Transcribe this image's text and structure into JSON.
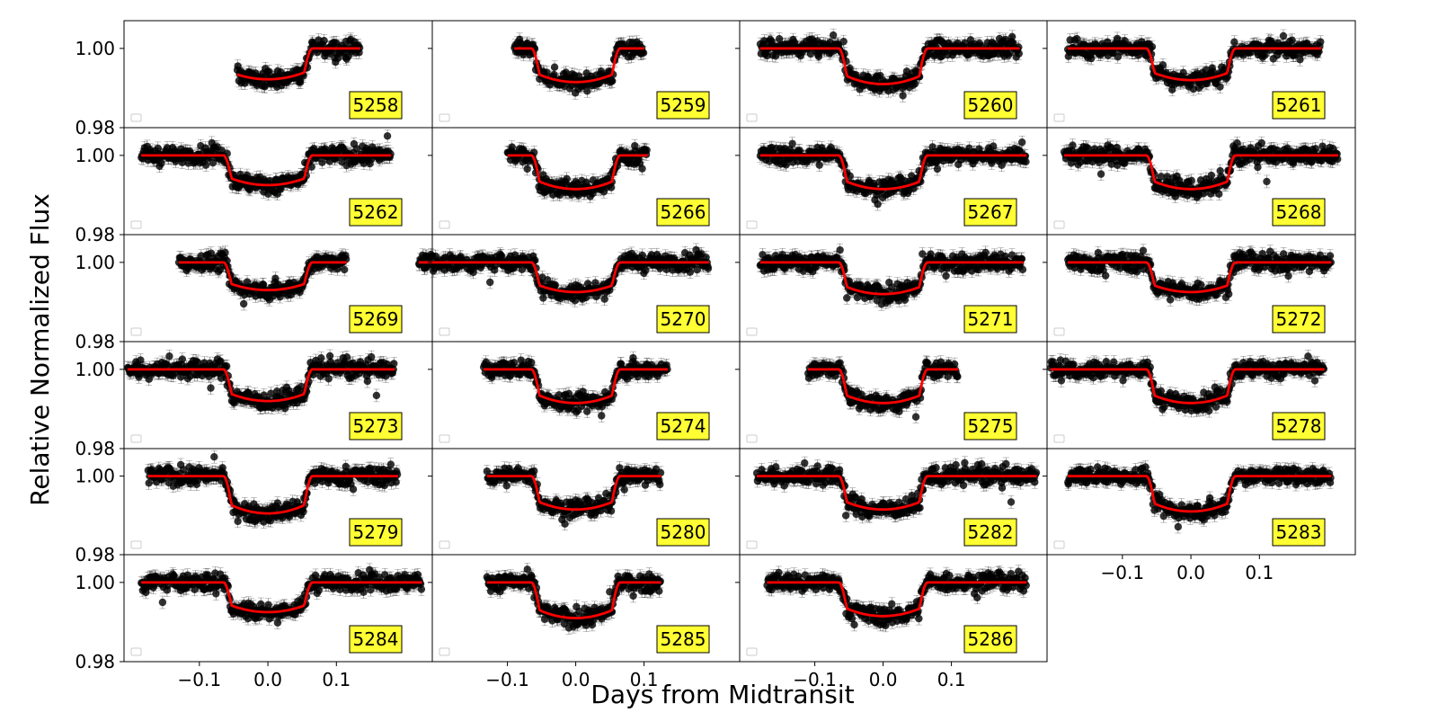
{
  "chart_data": {
    "type": "scatter",
    "xlabel": "Days from Midtransit",
    "ylabel": "Relative Normalized Flux",
    "xlim": [
      -0.21,
      0.24
    ],
    "ylim": [
      0.98,
      1.007
    ],
    "xticks": [
      {
        "value": -0.1,
        "label": "−0.1"
      },
      {
        "value": 0.0,
        "label": "0.0"
      },
      {
        "value": 0.1,
        "label": "0.1"
      }
    ],
    "yticks": [
      {
        "value": 1.0,
        "label": "1.00"
      },
      {
        "value": 0.98,
        "label": "0.98"
      }
    ],
    "grid": false,
    "model_color": "#ff0000",
    "marker_color": "#000000",
    "label_box_color": "#ffff33",
    "panels": [
      {
        "row": 0,
        "col": 0,
        "label": "5258",
        "t0": -0.045,
        "t1": 0.135,
        "depth": 0.0078,
        "ingress": 0.062
      },
      {
        "row": 0,
        "col": 1,
        "label": "5259",
        "t0": -0.09,
        "t1": 0.1,
        "depth": 0.0085,
        "ingress": 0.038
      },
      {
        "row": 0,
        "col": 2,
        "label": "5260",
        "t0": -0.18,
        "t1": 0.2,
        "depth": 0.009,
        "ingress": 0.06
      },
      {
        "row": 0,
        "col": 3,
        "label": "5261",
        "t0": -0.18,
        "t1": 0.19,
        "depth": 0.008,
        "ingress": 0.06
      },
      {
        "row": 1,
        "col": 0,
        "label": "5262",
        "t0": -0.185,
        "t1": 0.18,
        "depth": 0.0075,
        "ingress": 0.062
      },
      {
        "row": 1,
        "col": 1,
        "label": "5266",
        "t0": -0.1,
        "t1": 0.105,
        "depth": 0.0085,
        "ingress": 0.038
      },
      {
        "row": 1,
        "col": 2,
        "label": "5267",
        "t0": -0.18,
        "t1": 0.21,
        "depth": 0.0085,
        "ingress": 0.062
      },
      {
        "row": 1,
        "col": 3,
        "label": "5268",
        "t0": -0.185,
        "t1": 0.215,
        "depth": 0.0085,
        "ingress": 0.06
      },
      {
        "row": 2,
        "col": 0,
        "label": "5269",
        "t0": -0.13,
        "t1": 0.115,
        "depth": 0.007,
        "ingress": 0.06
      },
      {
        "row": 2,
        "col": 1,
        "label": "5270",
        "t0": -0.23,
        "t1": 0.195,
        "depth": 0.0075,
        "ingress": 0.038
      },
      {
        "row": 2,
        "col": 2,
        "label": "5271",
        "t0": -0.18,
        "t1": 0.205,
        "depth": 0.008,
        "ingress": 0.062
      },
      {
        "row": 2,
        "col": 3,
        "label": "5272",
        "t0": -0.18,
        "t1": 0.205,
        "depth": 0.0075,
        "ingress": 0.06
      },
      {
        "row": 3,
        "col": 0,
        "label": "5273",
        "t0": -0.205,
        "t1": 0.185,
        "depth": 0.008,
        "ingress": 0.062
      },
      {
        "row": 3,
        "col": 1,
        "label": "5274",
        "t0": -0.135,
        "t1": 0.135,
        "depth": 0.0085,
        "ingress": 0.038
      },
      {
        "row": 3,
        "col": 2,
        "label": "5275",
        "t0": -0.11,
        "t1": 0.11,
        "depth": 0.0085,
        "ingress": 0.062
      },
      {
        "row": 3,
        "col": 3,
        "label": "5278",
        "t0": -0.205,
        "t1": 0.195,
        "depth": 0.0085,
        "ingress": 0.06
      },
      {
        "row": 4,
        "col": 0,
        "label": "5279",
        "t0": -0.175,
        "t1": 0.19,
        "depth": 0.0095,
        "ingress": 0.062
      },
      {
        "row": 4,
        "col": 1,
        "label": "5280",
        "t0": -0.13,
        "t1": 0.125,
        "depth": 0.0085,
        "ingress": 0.038
      },
      {
        "row": 4,
        "col": 2,
        "label": "5282",
        "t0": -0.185,
        "t1": 0.225,
        "depth": 0.0085,
        "ingress": 0.062
      },
      {
        "row": 4,
        "col": 3,
        "label": "5283",
        "t0": -0.18,
        "t1": 0.205,
        "depth": 0.009,
        "ingress": 0.06
      },
      {
        "row": 5,
        "col": 0,
        "label": "5284",
        "t0": -0.185,
        "t1": 0.225,
        "depth": 0.0075,
        "ingress": 0.062
      },
      {
        "row": 5,
        "col": 1,
        "label": "5285",
        "t0": -0.13,
        "t1": 0.125,
        "depth": 0.009,
        "ingress": 0.038
      },
      {
        "row": 5,
        "col": 2,
        "label": "5286",
        "t0": -0.17,
        "t1": 0.21,
        "depth": 0.0085,
        "ingress": 0.062
      }
    ]
  }
}
